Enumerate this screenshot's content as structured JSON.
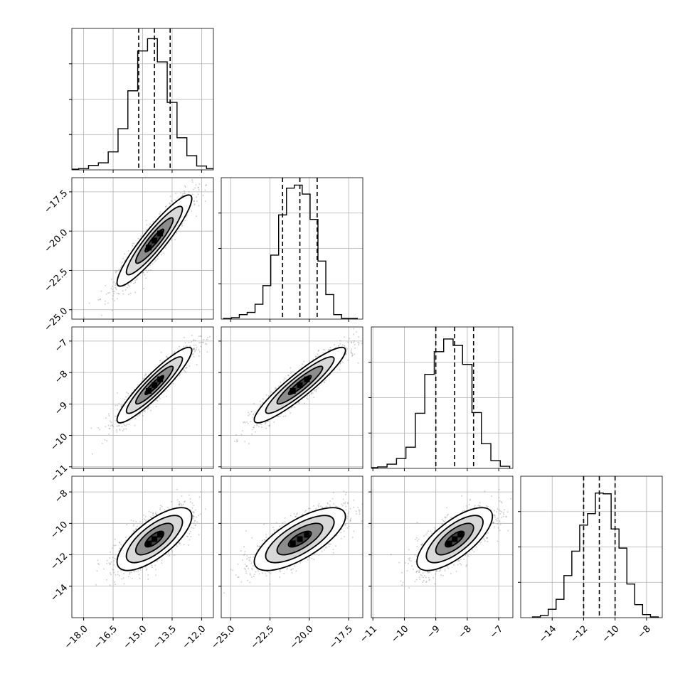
{
  "figure": {
    "type": "corner-plot",
    "n_params": 4,
    "grid": true,
    "colors": {
      "line": "#000000",
      "grid": "#b0b0b0",
      "scatter": "#7f7f7f",
      "hist_fill": "#000000"
    }
  },
  "chart_data": [
    {
      "type": "histogram",
      "panel": "diag-0",
      "x": [
        -18.5,
        -18.0,
        -17.5,
        -17.0,
        -16.5,
        -16.0,
        -15.5,
        -15.0,
        -14.5,
        -14.0,
        -13.5,
        -13.0,
        -12.5,
        -12.0,
        -11.5
      ],
      "values": [
        1,
        2,
        7,
        11,
        28,
        64,
        123,
        185,
        204,
        168,
        105,
        50,
        22,
        6,
        2
      ],
      "xlim": [
        -18.6,
        -11.4
      ],
      "ylim": [
        0,
        220
      ],
      "quantiles": [
        -15.2,
        -14.4,
        -13.6
      ],
      "ticks": []
    },
    {
      "type": "histogram",
      "panel": "diag-1",
      "x": [
        -25.2,
        -24.7,
        -24.2,
        -23.7,
        -23.2,
        -22.7,
        -22.2,
        -21.7,
        -21.2,
        -20.7,
        -20.2,
        -19.7,
        -19.2,
        -18.7,
        -18.2,
        -17.7,
        -17.2
      ],
      "values": [
        1,
        2,
        6,
        9,
        20,
        45,
        86,
        140,
        176,
        180,
        168,
        134,
        78,
        33,
        6,
        1,
        1
      ],
      "xlim": [
        -25.6,
        -16.6
      ],
      "ylim": [
        0,
        190
      ],
      "quantiles": [
        -21.7,
        -20.6,
        -19.5
      ],
      "ticks": []
    },
    {
      "type": "histogram",
      "panel": "diag-2",
      "x": [
        -11.0,
        -10.7,
        -10.4,
        -10.1,
        -9.8,
        -9.5,
        -9.2,
        -8.9,
        -8.6,
        -8.3,
        -8.0,
        -7.7,
        -7.4,
        -7.1,
        -6.8
      ],
      "values": [
        1,
        2,
        6,
        14,
        30,
        78,
        133,
        165,
        183,
        174,
        147,
        79,
        35,
        11,
        3
      ],
      "xlim": [
        -11.05,
        -6.55
      ],
      "ylim": [
        0,
        200
      ],
      "quantiles": [
        -9.0,
        -8.4,
        -7.8
      ],
      "ticks": []
    },
    {
      "type": "histogram",
      "panel": "diag-3",
      "x": [
        -15.0,
        -14.5,
        -14.0,
        -13.5,
        -13.0,
        -12.5,
        -12.0,
        -11.5,
        -11.0,
        -10.5,
        -10.0,
        -9.5,
        -9.0,
        -8.5,
        -8.0,
        -7.5
      ],
      "values": [
        1,
        3,
        11,
        24,
        55,
        87,
        121,
        136,
        163,
        162,
        116,
        91,
        44,
        17,
        4,
        1
      ],
      "xlim": [
        -16.0,
        -7.0
      ],
      "ylim": [
        0,
        185
      ],
      "quantiles": [
        -12.0,
        -11.0,
        -10.0
      ],
      "ticks": []
    },
    {
      "type": "scatter",
      "panel": "1-0",
      "mean": [
        -14.4,
        -20.6
      ],
      "sd": [
        0.95,
        1.45
      ],
      "rho": 0.92,
      "n_points": 1300,
      "xlim": [
        -18.6,
        -11.4
      ],
      "ylim": [
        -25.6,
        -16.6
      ],
      "contour_levels": [
        "0.5",
        "1.0",
        "1.5",
        "2.0"
      ],
      "ticks": []
    },
    {
      "type": "scatter",
      "panel": "2-0",
      "mean": [
        -14.4,
        -8.4
      ],
      "sd": [
        0.95,
        0.6
      ],
      "rho": 0.92,
      "n_points": 1300,
      "xlim": [
        -18.6,
        -11.4
      ],
      "ylim": [
        -11.05,
        -6.55
      ],
      "contour_levels": [
        "0.5",
        "1.0",
        "1.5",
        "2.0"
      ],
      "ticks": []
    },
    {
      "type": "scatter",
      "panel": "2-1",
      "mean": [
        -20.6,
        -8.4
      ],
      "sd": [
        1.45,
        0.6
      ],
      "rho": 0.92,
      "n_points": 1300,
      "xlim": [
        -25.6,
        -16.6
      ],
      "ylim": [
        -11.05,
        -6.55
      ],
      "contour_levels": [
        "0.5",
        "1.0",
        "1.5",
        "2.0"
      ],
      "ticks": []
    },
    {
      "type": "scatter",
      "panel": "3-0",
      "mean": [
        -14.4,
        -11.0
      ],
      "sd": [
        0.95,
        1.0
      ],
      "rho": 0.72,
      "n_points": 1500,
      "xlim": [
        -18.6,
        -11.4
      ],
      "ylim": [
        -16.0,
        -7.0
      ],
      "contour_levels": [
        "0.5",
        "1.0",
        "1.5",
        "2.0"
      ],
      "ticks": []
    },
    {
      "type": "scatter",
      "panel": "3-1",
      "mean": [
        -20.6,
        -11.0
      ],
      "sd": [
        1.45,
        1.0
      ],
      "rho": 0.72,
      "n_points": 1500,
      "xlim": [
        -25.6,
        -16.6
      ],
      "ylim": [
        -16.0,
        -7.0
      ],
      "contour_levels": [
        "0.5",
        "1.0",
        "1.5",
        "2.0"
      ],
      "ticks": []
    },
    {
      "type": "scatter",
      "panel": "3-2",
      "mean": [
        -8.4,
        -11.0
      ],
      "sd": [
        0.6,
        1.0
      ],
      "rho": 0.72,
      "n_points": 1500,
      "xlim": [
        -11.05,
        -6.55
      ],
      "ylim": [
        -16.0,
        -7.0
      ],
      "contour_levels": [
        "0.5",
        "1.0",
        "1.5",
        "2.0"
      ],
      "ticks": []
    }
  ],
  "axes": {
    "x": [
      {
        "ticks": [
          -18.0,
          -16.5,
          -15.0,
          -13.5,
          -12.0
        ],
        "labels": [
          "−18.0",
          "−16.5",
          "−15.0",
          "−13.5",
          "−12.0"
        ]
      },
      {
        "ticks": [
          -25.0,
          -22.5,
          -20.0,
          -17.5
        ],
        "labels": [
          "−25.0",
          "−22.5",
          "−20.0",
          "−17.5"
        ]
      },
      {
        "ticks": [
          -11,
          -10,
          -9,
          -8,
          -7
        ],
        "labels": [
          "−11",
          "−10",
          "−9",
          "−8",
          "−7"
        ]
      },
      {
        "ticks": [
          -14,
          -12,
          -10,
          -8
        ],
        "labels": [
          "−14",
          "−12",
          "−10",
          "−8"
        ]
      }
    ],
    "y": [
      null,
      {
        "ticks": [
          -25.0,
          -22.5,
          -20.0,
          -17.5
        ],
        "labels": [
          "−25.0",
          "−22.5",
          "−20.0",
          "−17.5"
        ]
      },
      {
        "ticks": [
          -11,
          -10,
          -9,
          -8,
          -7
        ],
        "labels": [
          "−11",
          "−10",
          "−9",
          "−8",
          "−7"
        ]
      },
      {
        "ticks": [
          -14,
          -12,
          -10,
          -8
        ],
        "labels": [
          "−14",
          "−12",
          "−10",
          "−8"
        ]
      }
    ]
  }
}
